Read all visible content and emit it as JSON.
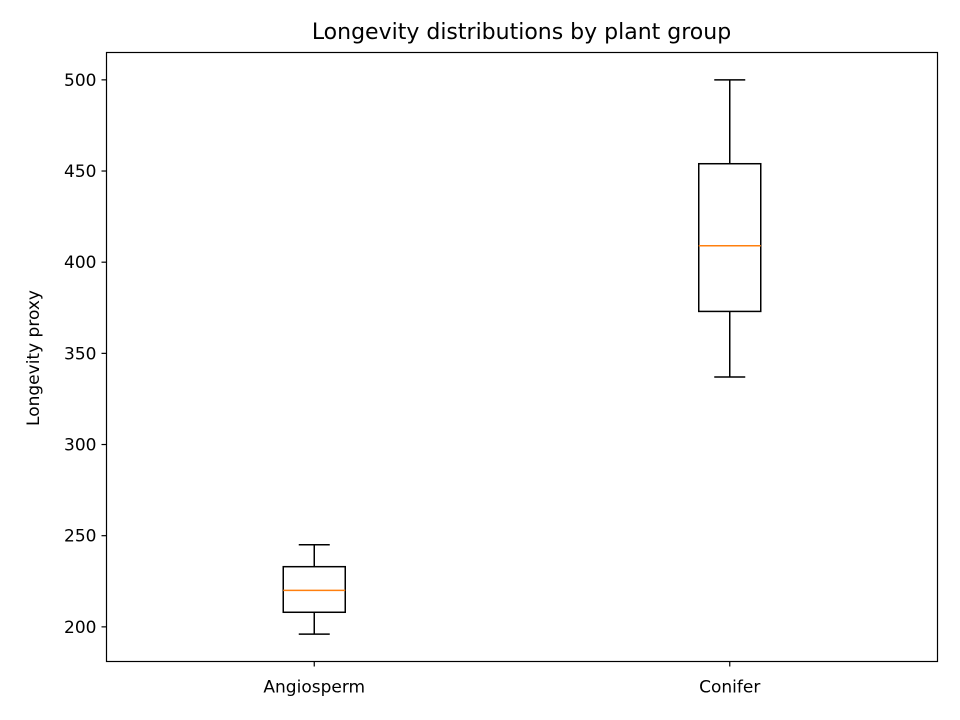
{
  "chart_data": {
    "type": "boxplot",
    "title": "Longevity distributions by plant group",
    "xlabel": "",
    "ylabel": "Longevity proxy",
    "ylim": [
      181,
      515
    ],
    "yticks": [
      200,
      250,
      300,
      350,
      400,
      450,
      500
    ],
    "categories": [
      "Angiosperm",
      "Conifer"
    ],
    "boxes": [
      {
        "category": "Angiosperm",
        "whisker_low": 196,
        "q1": 208,
        "median": 220,
        "q3": 233,
        "whisker_high": 245
      },
      {
        "category": "Conifer",
        "whisker_low": 337,
        "q1": 373,
        "median": 409,
        "q3": 454,
        "whisker_high": 500
      }
    ],
    "grid": false,
    "colors": {
      "box": "#000000",
      "median": "#ff7f0e",
      "axes": "#000000"
    }
  }
}
